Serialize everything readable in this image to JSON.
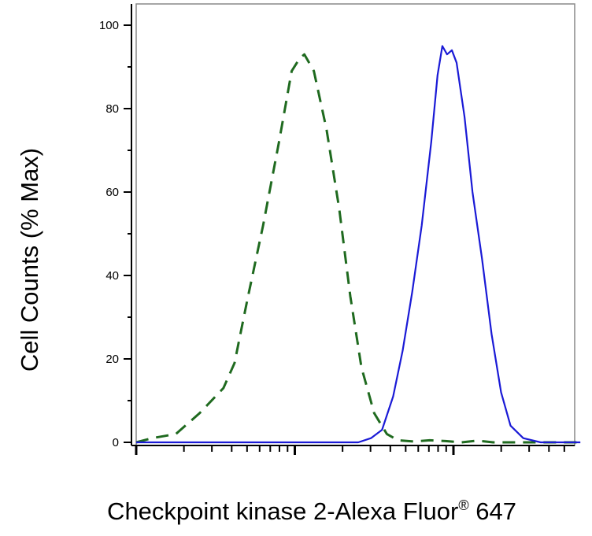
{
  "chart_data": {
    "type": "line",
    "xlabel_main": "Checkpoint kinase 2-Alexa Fluor",
    "xlabel_mark": "®",
    "xlabel_tail": " 647",
    "ylabel": "Cell Counts (% Max)",
    "ylim": [
      0,
      100
    ],
    "yticks": [
      "0",
      "20",
      "40",
      "60",
      "80",
      "100"
    ],
    "xscale": "log",
    "xlim_decades": [
      0,
      2.8
    ],
    "grid": false,
    "series": [
      {
        "color": "#1f6a1f",
        "style": "dashed",
        "x": [
          0.0,
          0.1,
          0.25,
          0.4,
          0.55,
          0.62,
          0.7,
          0.8,
          0.9,
          0.98,
          1.03,
          1.06,
          1.12,
          1.2,
          1.28,
          1.35,
          1.42,
          1.5,
          1.58,
          1.65,
          1.75,
          1.85,
          1.95,
          2.05,
          2.15,
          2.25,
          2.35,
          2.45,
          2.55,
          2.65,
          2.8
        ],
        "y": [
          0,
          1,
          2,
          7,
          13,
          19,
          34,
          52,
          72,
          89,
          92,
          93,
          89,
          75,
          56,
          35,
          18,
          7,
          2,
          0.5,
          0.2,
          0.5,
          0.3,
          0,
          0.4,
          0,
          0,
          0,
          0,
          0,
          0
        ]
      },
      {
        "color": "#1a1ad6",
        "style": "solid",
        "x": [
          0.0,
          0.5,
          1.0,
          1.3,
          1.4,
          1.48,
          1.55,
          1.62,
          1.68,
          1.74,
          1.8,
          1.86,
          1.9,
          1.93,
          1.96,
          1.99,
          2.02,
          2.07,
          2.12,
          2.18,
          2.24,
          2.3,
          2.36,
          2.44,
          2.55,
          2.65,
          2.8
        ],
        "y": [
          0,
          0,
          0,
          0,
          0,
          1,
          3,
          11,
          22,
          36,
          52,
          72,
          88,
          95,
          93,
          94,
          91,
          78,
          60,
          44,
          26,
          12,
          4,
          1,
          0,
          0,
          0
        ]
      }
    ]
  }
}
